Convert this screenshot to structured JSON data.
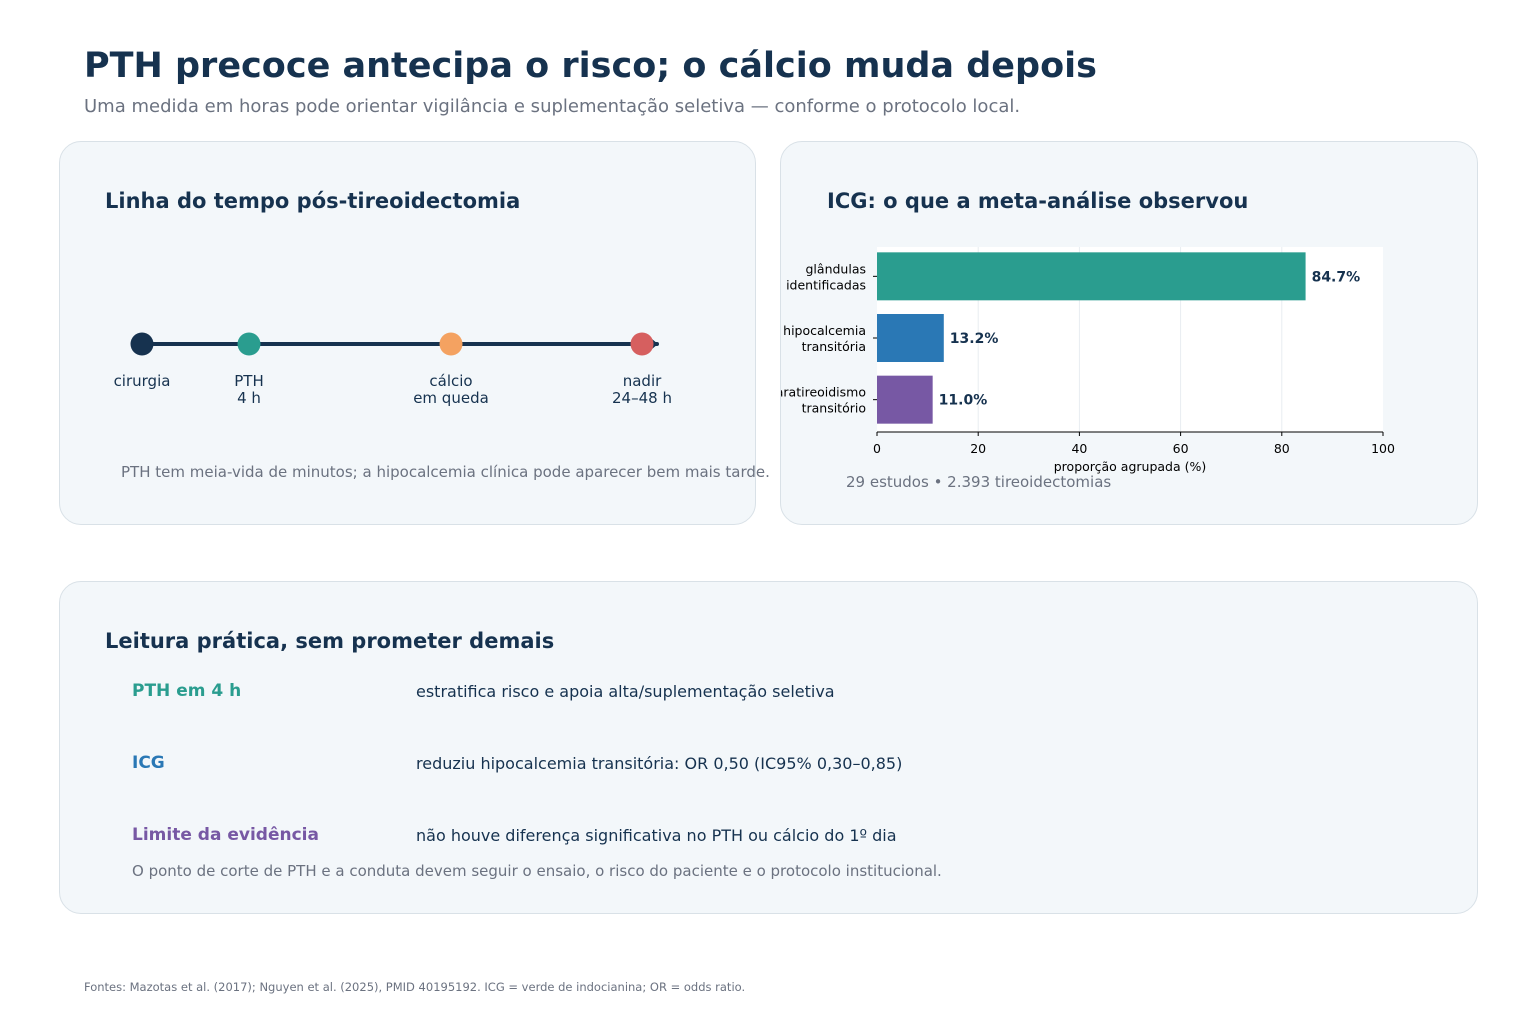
{
  "header": {
    "title": "PTH precoce antecipa o risco; o cálcio muda depois",
    "subtitle": "Uma medida em horas pode orientar vigilância e suplementação seletiva — conforme o protocolo local."
  },
  "timeline": {
    "title": "Linha do tempo pós-tireoidectomia",
    "events": [
      {
        "line1": "cirurgia",
        "line2": "",
        "color": "#16324f"
      },
      {
        "line1": "PTH",
        "line2": "4 h",
        "color": "#2a9d8f"
      },
      {
        "line1": "cálcio",
        "line2": "em queda",
        "color": "#f4a261"
      },
      {
        "line1": "nadir",
        "line2": "24–48 h",
        "color": "#d65f5f"
      }
    ],
    "note": "PTH tem meia-vida de minutos; a hipocalcemia clínica pode aparecer bem mais tarde."
  },
  "icg": {
    "title": "ICG: o que a meta-análise observou",
    "note": "29 estudos • 2.393 tireoidectomias"
  },
  "chart_data": {
    "type": "bar",
    "orientation": "horizontal",
    "categories": [
      [
        "glândulas",
        "identificadas"
      ],
      [
        "hipocalcemia",
        "transitória"
      ],
      [
        "hipoparatireoidismo",
        "transitório"
      ]
    ],
    "values": [
      84.7,
      13.2,
      11.0
    ],
    "value_labels": [
      "84.7%",
      "13.2%",
      "11.0%"
    ],
    "colors": [
      "#2a9d8f",
      "#2a78b5",
      "#7758a4"
    ],
    "xlabel": "proporção agrupada (%)",
    "xlim": [
      0,
      100
    ],
    "xticks": [
      0,
      20,
      40,
      60,
      80,
      100
    ],
    "grid": "vertical"
  },
  "practice": {
    "title": "Leitura prática, sem prometer demais",
    "rows": [
      {
        "key": "PTH em 4 h",
        "value": "estratifica risco e apoia alta/suplementação seletiva",
        "color": "#2a9d8f"
      },
      {
        "key": "ICG",
        "value": "reduziu hipocalcemia transitória: OR 0,50 (IC95% 0,30–0,85)",
        "color": "#2a78b5"
      },
      {
        "key": "Limite da evidência",
        "value": "não houve diferença significativa no PTH ou cálcio do 1º dia",
        "color": "#7758a4"
      }
    ],
    "note": "O ponto de corte de PTH e a conduta devem seguir o ensaio, o risco do paciente e o protocolo institucional."
  },
  "footer": {
    "sources": "Fontes: Mazotas et al. (2017); Nguyen et al. (2025), PMID 40195192. ICG = verde de indocianina; OR = odds ratio."
  }
}
